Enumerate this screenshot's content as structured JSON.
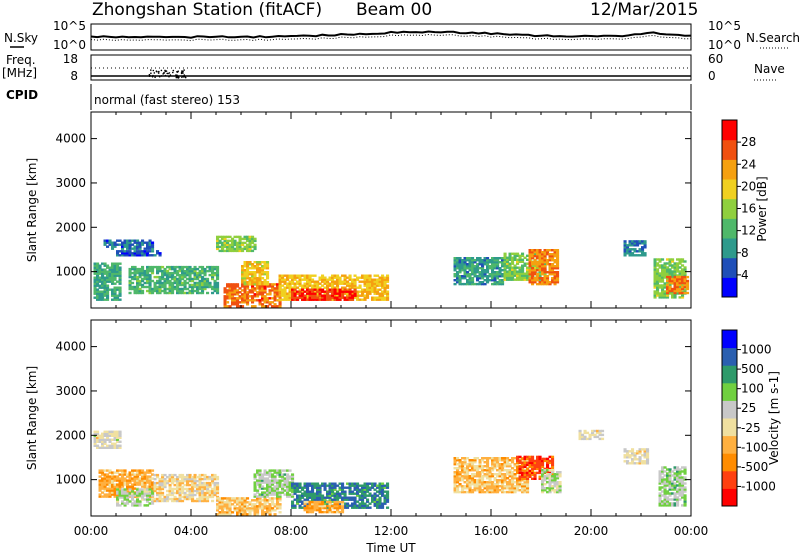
{
  "header": {
    "station": "Zhongshan Station (fitACF)",
    "beam": "Beam 00",
    "date": "12/Mar/2015",
    "mode": "normal (fast stereo) 153"
  },
  "params": {
    "nsky_label": "N.Sky",
    "nsearch_label": "N.Search",
    "noise_ticks": [
      "10^5",
      "10^0"
    ],
    "freq_label": "Freq.",
    "freq_unit": "[MHz]",
    "freq_ticks": [
      "18",
      "8"
    ],
    "nave_label": "Nave",
    "nave_ticks": [
      "60",
      "0"
    ],
    "cpid_label": "CPID"
  },
  "chart_data": [
    {
      "type": "heatmap",
      "name": "power",
      "ylabel": "Slant Range [km]",
      "yticks": [
        "1000",
        "2000",
        "3000",
        "4000"
      ],
      "ylim": [
        180,
        4600
      ],
      "xlabel": "Time UT",
      "xticks": [
        "00:00",
        "04:00",
        "08:00",
        "12:00",
        "16:00",
        "20:00",
        "00:00"
      ],
      "colorbar_label": "Power [dB]",
      "colorbar_ticks": [
        "4",
        "8",
        "12",
        "16",
        "20",
        "24",
        "28"
      ],
      "colorbar_range": [
        0,
        30
      ],
      "colors": [
        "#0000ff",
        "#1f4fb8",
        "#2e9a8c",
        "#4fb86a",
        "#8fcf3e",
        "#f0d020",
        "#f5a010",
        "#f05010",
        "#ff0000"
      ],
      "regions": [
        {
          "t0": 0.1,
          "t1": 1.1,
          "r0": 350,
          "r1": 1200,
          "v": 10
        },
        {
          "t0": 0.5,
          "t1": 2.5,
          "r0": 1500,
          "r1": 1700,
          "v": 6
        },
        {
          "t0": 1.0,
          "t1": 2.8,
          "r0": 1350,
          "r1": 1480,
          "v": 5
        },
        {
          "t0": 1.5,
          "t1": 5.0,
          "r0": 500,
          "r1": 1100,
          "v": 11
        },
        {
          "t0": 5.0,
          "t1": 6.5,
          "r0": 1450,
          "r1": 1800,
          "v": 14
        },
        {
          "t0": 5.3,
          "t1": 7.5,
          "r0": 200,
          "r1": 700,
          "v": 24
        },
        {
          "t0": 6.0,
          "t1": 7.0,
          "r0": 700,
          "r1": 1200,
          "v": 19
        },
        {
          "t0": 7.5,
          "t1": 11.8,
          "r0": 350,
          "r1": 900,
          "v": 20
        },
        {
          "t0": 8.0,
          "t1": 10.5,
          "r0": 350,
          "r1": 600,
          "v": 27
        },
        {
          "t0": 14.5,
          "t1": 16.5,
          "r0": 700,
          "r1": 1300,
          "v": 9
        },
        {
          "t0": 16.5,
          "t1": 18.2,
          "r0": 800,
          "r1": 1400,
          "v": 14
        },
        {
          "t0": 17.5,
          "t1": 18.7,
          "r0": 700,
          "r1": 1500,
          "v": 23
        },
        {
          "t0": 21.3,
          "t1": 22.2,
          "r0": 1350,
          "r1": 1700,
          "v": 7
        },
        {
          "t0": 22.5,
          "t1": 23.8,
          "r0": 400,
          "r1": 1300,
          "v": 14
        },
        {
          "t0": 23.0,
          "t1": 23.9,
          "r0": 500,
          "r1": 900,
          "v": 23
        }
      ]
    },
    {
      "type": "heatmap",
      "name": "velocity",
      "ylabel": "Slant Range [km]",
      "yticks": [
        "1000",
        "2000",
        "3000",
        "4000"
      ],
      "ylim": [
        180,
        4600
      ],
      "xlabel": "Time UT",
      "xticks": [
        "00:00",
        "04:00",
        "08:00",
        "12:00",
        "16:00",
        "20:00",
        "00:00"
      ],
      "colorbar_label": "Velocity [m s-1]",
      "colorbar_ticks": [
        "1000",
        "500",
        "100",
        "25",
        "-25",
        "-100",
        "-500",
        "-1000"
      ],
      "colorbar_range": [
        -1200,
        1200
      ],
      "colors": [
        "#ff0000",
        "#ff4010",
        "#ff8c00",
        "#ffb040",
        "#f0e0a0",
        "#c8c8c8",
        "#70d040",
        "#2e9a6a",
        "#2a5fb0",
        "#0000ff"
      ],
      "regions": [
        {
          "t0": 0.1,
          "t1": 1.2,
          "r0": 1700,
          "r1": 2100,
          "v": 0
        },
        {
          "t0": 0.3,
          "t1": 2.5,
          "r0": 600,
          "r1": 1200,
          "v": -400
        },
        {
          "t0": 1.0,
          "t1": 2.5,
          "r0": 400,
          "r1": 800,
          "v": 200
        },
        {
          "t0": 2.5,
          "t1": 5.0,
          "r0": 500,
          "r1": 1100,
          "v": -150
        },
        {
          "t0": 5.0,
          "t1": 7.5,
          "r0": 200,
          "r1": 600,
          "v": -300
        },
        {
          "t0": 6.5,
          "t1": 8.0,
          "r0": 600,
          "r1": 1200,
          "v": 250
        },
        {
          "t0": 8.0,
          "t1": 11.8,
          "r0": 350,
          "r1": 900,
          "v": 700
        },
        {
          "t0": 8.5,
          "t1": 10.0,
          "r0": 250,
          "r1": 500,
          "v": -400
        },
        {
          "t0": 14.5,
          "t1": 17.5,
          "r0": 700,
          "r1": 1500,
          "v": -300
        },
        {
          "t0": 17.0,
          "t1": 18.5,
          "r0": 1000,
          "r1": 1500,
          "v": -800
        },
        {
          "t0": 18.0,
          "t1": 18.8,
          "r0": 700,
          "r1": 1200,
          "v": 150
        },
        {
          "t0": 21.3,
          "t1": 22.3,
          "r0": 1350,
          "r1": 1700,
          "v": -60
        },
        {
          "t0": 22.7,
          "t1": 23.8,
          "r0": 400,
          "r1": 1300,
          "v": 300
        },
        {
          "t0": 19.5,
          "t1": 20.5,
          "r0": 1900,
          "r1": 2100,
          "v": 0
        }
      ]
    }
  ]
}
